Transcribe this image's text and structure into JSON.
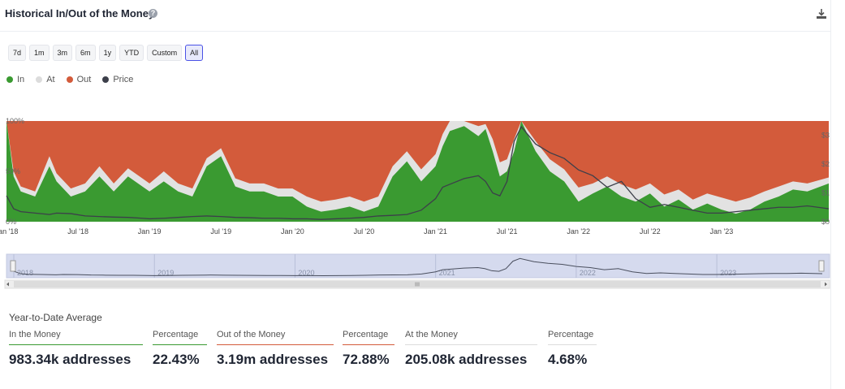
{
  "header": {
    "title": "Historical In/Out of the Money",
    "help_glyph": "?"
  },
  "range_buttons": [
    "7d",
    "1m",
    "3m",
    "6m",
    "1y",
    "YTD",
    "Custom",
    "All"
  ],
  "active_range": "All",
  "legend": [
    {
      "label": "In",
      "color": "#3a9a31"
    },
    {
      "label": "At",
      "color": "#dcdcdc"
    },
    {
      "label": "Out",
      "color": "#d35b3b"
    },
    {
      "label": "Price",
      "color": "#3c3f4a"
    }
  ],
  "colors": {
    "in": "#3a9a31",
    "at": "#e2e2e2",
    "out": "#d35b3b",
    "price": "#3c3f4a",
    "navigator_fill": "#d5daee"
  },
  "chart_data": {
    "type": "area",
    "title": "Historical In/Out of the Money",
    "y_left_ticks": [
      "100%",
      "50%",
      "0%"
    ],
    "y_right_ticks": [
      "$3",
      "$2",
      "$1",
      "$0"
    ],
    "ylim": [
      0,
      100
    ],
    "x_range": [
      2018.0,
      2023.75
    ],
    "x_tick_labels": [
      "Jan '18",
      "Jul '18",
      "Jan '19",
      "Jul '19",
      "Jan '20",
      "Jul '20",
      "Jan '21",
      "Jul '21",
      "Jan '22",
      "Jul '22",
      "Jan '23"
    ],
    "x_tick_values": [
      2018.0,
      2018.5,
      2019.0,
      2019.5,
      2020.0,
      2020.5,
      2021.0,
      2021.5,
      2022.0,
      2022.5,
      2023.0
    ],
    "x": [
      2018.0,
      2018.05,
      2018.1,
      2018.2,
      2018.3,
      2018.35,
      2018.45,
      2018.55,
      2018.65,
      2018.75,
      2018.85,
      2018.95,
      2019.0,
      2019.1,
      2019.2,
      2019.3,
      2019.4,
      2019.5,
      2019.6,
      2019.7,
      2019.8,
      2019.9,
      2020.0,
      2020.1,
      2020.2,
      2020.3,
      2020.4,
      2020.5,
      2020.6,
      2020.7,
      2020.8,
      2020.9,
      2021.0,
      2021.05,
      2021.1,
      2021.2,
      2021.3,
      2021.35,
      2021.4,
      2021.45,
      2021.5,
      2021.55,
      2021.6,
      2021.7,
      2021.8,
      2021.9,
      2022.0,
      2022.1,
      2022.2,
      2022.3,
      2022.4,
      2022.5,
      2022.6,
      2022.7,
      2022.8,
      2022.9,
      2023.0,
      2023.1,
      2023.2,
      2023.3,
      2023.4,
      2023.5,
      2023.6,
      2023.75
    ],
    "series": [
      {
        "name": "In",
        "values": [
          100,
          45,
          30,
          25,
          55,
          40,
          25,
          30,
          45,
          30,
          45,
          35,
          30,
          40,
          30,
          25,
          55,
          65,
          35,
          30,
          30,
          25,
          25,
          15,
          10,
          12,
          15,
          10,
          15,
          45,
          60,
          40,
          55,
          75,
          90,
          95,
          85,
          92,
          70,
          45,
          50,
          70,
          100,
          70,
          50,
          40,
          20,
          28,
          35,
          25,
          20,
          28,
          15,
          22,
          12,
          18,
          12,
          8,
          12,
          20,
          25,
          32,
          30,
          38
        ]
      },
      {
        "name": "At",
        "values": [
          0,
          5,
          5,
          5,
          10,
          8,
          8,
          8,
          10,
          8,
          8,
          8,
          8,
          10,
          8,
          8,
          8,
          8,
          8,
          8,
          8,
          8,
          8,
          10,
          10,
          10,
          10,
          10,
          10,
          10,
          10,
          12,
          12,
          12,
          10,
          5,
          10,
          5,
          12,
          14,
          12,
          12,
          0,
          10,
          12,
          12,
          14,
          10,
          10,
          12,
          12,
          10,
          12,
          10,
          10,
          10,
          12,
          12,
          12,
          10,
          10,
          8,
          8,
          6
        ]
      },
      {
        "name": "Price",
        "values": [
          0.9,
          0.45,
          0.35,
          0.3,
          0.25,
          0.3,
          0.28,
          0.2,
          0.18,
          0.16,
          0.15,
          0.12,
          0.1,
          0.12,
          0.15,
          0.18,
          0.2,
          0.18,
          0.15,
          0.14,
          0.12,
          0.12,
          0.1,
          0.1,
          0.08,
          0.1,
          0.12,
          0.15,
          0.2,
          0.22,
          0.25,
          0.4,
          0.8,
          1.2,
          1.3,
          1.5,
          1.6,
          1.4,
          1.0,
          0.9,
          1.4,
          2.8,
          3.3,
          2.7,
          2.4,
          2.2,
          1.8,
          1.6,
          1.2,
          1.4,
          0.8,
          0.5,
          0.6,
          0.5,
          0.4,
          0.3,
          0.3,
          0.35,
          0.4,
          0.45,
          0.5,
          0.5,
          0.55,
          0.45
        ]
      }
    ],
    "navigator_years": [
      "2018",
      "2019",
      "2020",
      "2021",
      "2022",
      "2023"
    ],
    "legend_position": "top-left"
  },
  "stats": {
    "title": "Year-to-Date Average",
    "columns": [
      {
        "label": "In the Money",
        "value": "983.34k addresses",
        "underline": "#3a9a31"
      },
      {
        "label": "Percentage",
        "value": "22.43%",
        "underline": "#3a9a31"
      },
      {
        "label": "Out of the Money",
        "value": "3.19m addresses",
        "underline": "#d35b3b"
      },
      {
        "label": "Percentage",
        "value": "72.88%",
        "underline": "#d35b3b"
      },
      {
        "label": "At the Money",
        "value": "205.08k addresses",
        "underline": "#dcdcdc"
      },
      {
        "label": "Percentage",
        "value": "4.68%",
        "underline": "#dcdcdc"
      }
    ]
  }
}
